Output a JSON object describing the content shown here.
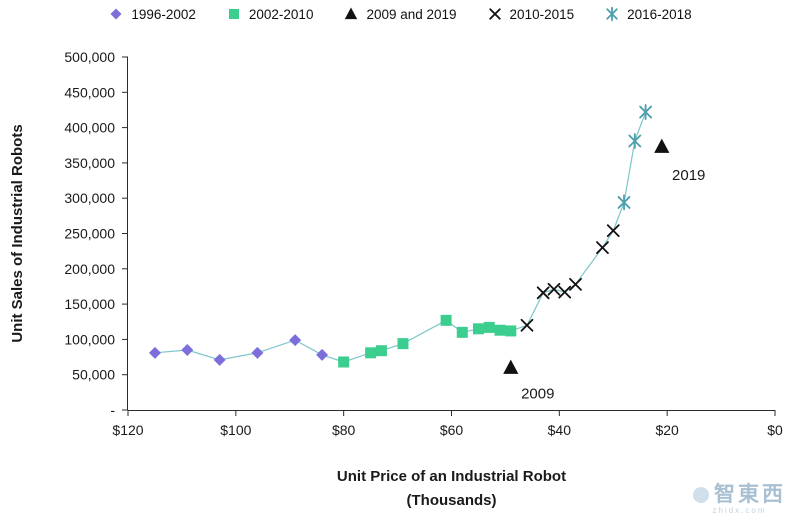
{
  "watermark": {
    "text": "智東西",
    "subtext": "zhidx.com"
  },
  "chart_data": {
    "type": "scatter",
    "title": "",
    "xlabel": "Unit Price of an Industrial Robot",
    "xlabel_line2": "(Thousands)",
    "ylabel": "Unit Sales of Industrial Robots",
    "legend_position": "top",
    "grid": false,
    "x_axis": {
      "min": 0,
      "max": 120,
      "reversed": true,
      "ticks": [
        {
          "v": 120,
          "label": "$120"
        },
        {
          "v": 100,
          "label": "$100"
        },
        {
          "v": 80,
          "label": "$80"
        },
        {
          "v": 60,
          "label": "$60"
        },
        {
          "v": 40,
          "label": "$40"
        },
        {
          "v": 20,
          "label": "$20"
        },
        {
          "v": 0,
          "label": "$0"
        }
      ]
    },
    "y_axis": {
      "min": 0,
      "max": 500000,
      "ticks": [
        {
          "v": 0,
          "label": "-"
        },
        {
          "v": 50000,
          "label": "50,000"
        },
        {
          "v": 100000,
          "label": "100,000"
        },
        {
          "v": 150000,
          "label": "150,000"
        },
        {
          "v": 200000,
          "label": "200,000"
        },
        {
          "v": 250000,
          "label": "250,000"
        },
        {
          "v": 300000,
          "label": "300,000"
        },
        {
          "v": 350000,
          "label": "350,000"
        },
        {
          "v": 400000,
          "label": "400,000"
        },
        {
          "v": 450000,
          "label": "450,000"
        },
        {
          "v": 500000,
          "label": "500,000"
        }
      ]
    },
    "series": [
      {
        "name": "1996-2002",
        "marker": "diamond",
        "color": "#7D6FDB",
        "in_line": true,
        "points": [
          [
            115,
            81000
          ],
          [
            109,
            85000
          ],
          [
            103,
            71000
          ],
          [
            96,
            81000
          ],
          [
            89,
            99000
          ],
          [
            84,
            78000
          ]
        ]
      },
      {
        "name": "2002-2010",
        "marker": "square",
        "color": "#3BCE8E",
        "in_line": true,
        "points": [
          [
            80,
            68000
          ],
          [
            75,
            81000
          ],
          [
            73,
            84000
          ],
          [
            69,
            94000
          ],
          [
            61,
            127000
          ],
          [
            58,
            110000
          ],
          [
            55,
            115000
          ],
          [
            53,
            117000
          ],
          [
            51,
            113000
          ],
          [
            49,
            112000
          ]
        ]
      },
      {
        "name": "2009 and 2019",
        "marker": "triangle",
        "color": "#111111",
        "in_line": false,
        "points": [
          [
            49,
            60000
          ],
          [
            21,
            373000
          ]
        ]
      },
      {
        "name": "2010-2015",
        "marker": "xcross",
        "color": "#111111",
        "in_line": true,
        "points": [
          [
            46,
            120000
          ],
          [
            43,
            166000
          ],
          [
            41,
            171000
          ],
          [
            39,
            167000
          ],
          [
            37,
            178000
          ],
          [
            32,
            230000
          ],
          [
            30,
            254000
          ]
        ]
      },
      {
        "name": "2016-2018",
        "marker": "xstar",
        "color": "#4C9FAD",
        "in_line": true,
        "points": [
          [
            28,
            294000
          ],
          [
            26,
            381000
          ],
          [
            24,
            422000
          ]
        ]
      }
    ],
    "trendline": {
      "color": "#7CC5CB",
      "width": 1.2
    },
    "annotations": [
      {
        "label": "2009",
        "price": 44,
        "sales": 16000
      },
      {
        "label": "2019",
        "price": 16,
        "sales": 326000
      }
    ]
  }
}
